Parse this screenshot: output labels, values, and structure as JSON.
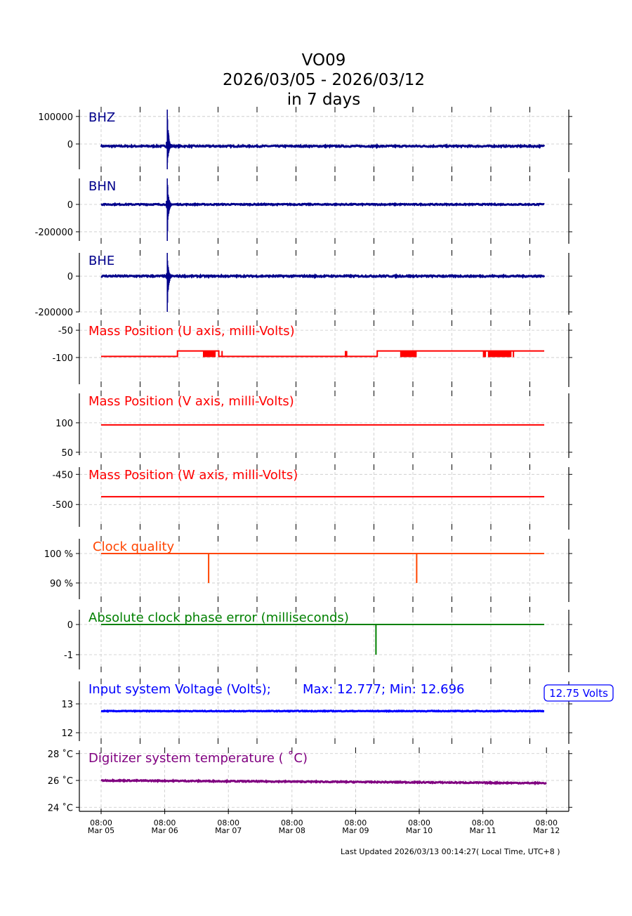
{
  "chart_data": {
    "type": "line",
    "title": [
      "VO09",
      "2026/03/05 - 2026/03/12",
      "in 7 days"
    ],
    "x_axis": {
      "unit": "days since Mar 05 08:00",
      "range": [
        0,
        7
      ],
      "ticks": [
        {
          "value": 0,
          "time": "08:00",
          "date": "Mar 05"
        },
        {
          "value": 1,
          "time": "08:00",
          "date": "Mar 06"
        },
        {
          "value": 2,
          "time": "08:00",
          "date": "Mar 07"
        },
        {
          "value": 3,
          "time": "08:00",
          "date": "Mar 08"
        },
        {
          "value": 4,
          "time": "08:00",
          "date": "Mar 09"
        },
        {
          "value": 5,
          "time": "08:00",
          "date": "Mar 10"
        },
        {
          "value": 6,
          "time": "08:00",
          "date": "Mar 11"
        },
        {
          "value": 7,
          "time": "08:00",
          "date": "Mar 12"
        }
      ]
    },
    "grid": true,
    "panels": [
      {
        "id": "bhz",
        "label": "BHZ",
        "color": "#00008b",
        "ylim": [
          -92000,
          125000
        ],
        "yticks": [
          {
            "v": 100000,
            "l": "100000"
          },
          {
            "v": 0,
            "l": "0"
          }
        ],
        "baseline": -8000,
        "noise": 2500,
        "end": 6.965,
        "event": {
          "t": 1.04,
          "max": 125000,
          "min": -92000
        }
      },
      {
        "id": "bhn",
        "label": "BHN",
        "color": "#00008b",
        "ylim": [
          -267000,
          190000
        ],
        "yticks": [
          {
            "v": 0,
            "l": "0"
          },
          {
            "v": -200000,
            "l": "-200000"
          }
        ],
        "baseline": 0,
        "noise": 4000,
        "end": 6.965,
        "event": {
          "t": 1.04,
          "max": 190000,
          "min": -267000
        }
      },
      {
        "id": "bhe",
        "label": "BHE",
        "color": "#00008b",
        "ylim": [
          -200000,
          130000
        ],
        "yticks": [
          {
            "v": 0,
            "l": "0"
          },
          {
            "v": -200000,
            "l": "-200000"
          }
        ],
        "baseline": 0,
        "noise": 4000,
        "end": 6.965,
        "event": {
          "t": 1.04,
          "max": 130000,
          "min": -200000
        }
      },
      {
        "id": "mass-u",
        "label": "Mass Position (U axis, milli-Volts)",
        "color": "#ff0000",
        "ylim": [
          -149,
          -37
        ],
        "yticks": [
          {
            "v": -50,
            "l": "-50"
          },
          {
            "v": -100,
            "l": "-100"
          }
        ],
        "end": 6.965,
        "steps": [
          [
            0,
            -98
          ],
          [
            1.2,
            -88
          ],
          [
            1.85,
            -98
          ],
          [
            4.34,
            -88
          ]
        ],
        "toggles": [
          [
            1.6,
            1.8
          ],
          [
            1.89,
            1.91
          ],
          [
            3.83,
            3.87
          ],
          [
            4.7,
            4.96
          ],
          [
            6.0,
            6.05
          ],
          [
            6.08,
            6.45
          ],
          [
            6.47,
            6.49
          ]
        ],
        "toggle_range": [
          -98,
          -88
        ]
      },
      {
        "id": "mass-v",
        "label": "Mass Position (V axis, milli-Volts)",
        "color": "#ff0000",
        "ylim": [
          45,
          150
        ],
        "yticks": [
          {
            "v": 100,
            "l": "100"
          },
          {
            "v": 50,
            "l": "50"
          }
        ],
        "value": 96.5,
        "end": 6.965
      },
      {
        "id": "mass-w",
        "label": "Mass Position (W axis, milli-Volts)",
        "color": "#ff0000",
        "ylim": [
          -537,
          -438
        ],
        "yticks": [
          {
            "v": -450,
            "l": "-450"
          },
          {
            "v": -500,
            "l": "-500"
          }
        ],
        "value": -487,
        "end": 6.965
      },
      {
        "id": "clock-quality",
        "label": "Clock quality",
        "color": "#ff4500",
        "ylim": [
          84.5,
          105
        ],
        "yticks": [
          {
            "v": 100,
            "l": "100 %"
          },
          {
            "v": 90,
            "l": "90 %"
          }
        ],
        "value": 100,
        "dips": [
          [
            1.69,
            90
          ],
          [
            4.96,
            90
          ]
        ],
        "end": 6.965
      },
      {
        "id": "clock-phase-error",
        "label": "Absolute clock phase error (milliseconds)",
        "color": "#008000",
        "ylim": [
          -1.49,
          0.49
        ],
        "yticks": [
          {
            "v": 0,
            "l": "0"
          },
          {
            "v": -1,
            "l": "-1"
          }
        ],
        "value": 0,
        "dips": [
          [
            4.32,
            -1
          ]
        ],
        "end": 6.965
      },
      {
        "id": "input-voltage",
        "label": "Input system Voltage (Volts);",
        "stats": "Max: 12.777; Min: 12.696",
        "badge": "12.75 Volts",
        "color": "#0000ff",
        "ylim": [
          11.71,
          13.78
        ],
        "yticks": [
          {
            "v": 13,
            "l": "13"
          },
          {
            "v": 12,
            "l": "12"
          }
        ],
        "baseline": 12.75,
        "noise": 0.012,
        "end": 6.965
      },
      {
        "id": "digitizer-temp",
        "label": "Digitizer system temperature ( ˚C)",
        "color": "#800080",
        "ylim": [
          23.7,
          28.25
        ],
        "yticks": [
          {
            "v": 28,
            "l": "28 ˚C"
          },
          {
            "v": 26,
            "l": "26 ˚C"
          },
          {
            "v": 24,
            "l": "24 ˚C"
          }
        ],
        "baseline": 26.0,
        "baseline_end": 25.8,
        "noise": 0.04,
        "end": 7.0
      }
    ],
    "footer": "Last Updated 2026/03/13 00:14:27( Local Time, UTC+8 )"
  }
}
